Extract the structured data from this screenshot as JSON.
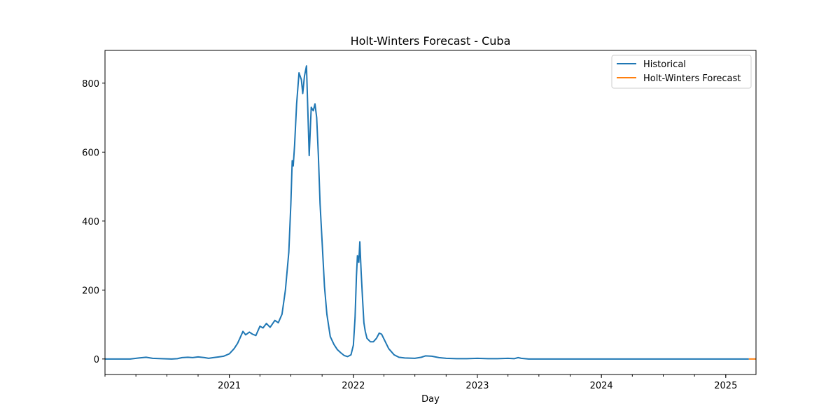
{
  "chart_data": {
    "type": "line",
    "title": "Holt-Winters Forecast - Cuba",
    "xlabel": "Day",
    "ylabel": "",
    "xlim": [
      "2020-01-01",
      "2025-03-31"
    ],
    "ylim": [
      -45,
      895
    ],
    "x_ticks": [
      "2021-01-01",
      "2022-01-01",
      "2023-01-01",
      "2024-01-01",
      "2025-01-01"
    ],
    "x_tick_labels": [
      "2021",
      "2022",
      "2023",
      "2024",
      "2025"
    ],
    "y_ticks": [
      0,
      200,
      400,
      600,
      800
    ],
    "y_tick_labels": [
      "0",
      "200",
      "400",
      "600",
      "800"
    ],
    "grid": false,
    "legend": "top-right",
    "series": [
      {
        "name": "Historical",
        "color": "#1f77b4",
        "points": [
          [
            "2020-01-01",
            0
          ],
          [
            "2020-03-15",
            0
          ],
          [
            "2020-04-10",
            3
          ],
          [
            "2020-05-01",
            5
          ],
          [
            "2020-05-20",
            2
          ],
          [
            "2020-06-15",
            1
          ],
          [
            "2020-07-15",
            0
          ],
          [
            "2020-08-01",
            1
          ],
          [
            "2020-08-15",
            4
          ],
          [
            "2020-09-01",
            5
          ],
          [
            "2020-09-15",
            4
          ],
          [
            "2020-10-01",
            6
          ],
          [
            "2020-10-20",
            4
          ],
          [
            "2020-11-01",
            2
          ],
          [
            "2020-11-15",
            4
          ],
          [
            "2020-12-01",
            6
          ],
          [
            "2020-12-15",
            8
          ],
          [
            "2021-01-01",
            15
          ],
          [
            "2021-01-15",
            30
          ],
          [
            "2021-01-25",
            45
          ],
          [
            "2021-02-01",
            60
          ],
          [
            "2021-02-10",
            80
          ],
          [
            "2021-02-18",
            70
          ],
          [
            "2021-03-01",
            78
          ],
          [
            "2021-03-10",
            72
          ],
          [
            "2021-03-20",
            68
          ],
          [
            "2021-04-01",
            95
          ],
          [
            "2021-04-10",
            90
          ],
          [
            "2021-04-20",
            103
          ],
          [
            "2021-05-01",
            92
          ],
          [
            "2021-05-15",
            112
          ],
          [
            "2021-05-25",
            105
          ],
          [
            "2021-06-05",
            130
          ],
          [
            "2021-06-15",
            200
          ],
          [
            "2021-06-25",
            310
          ],
          [
            "2021-07-01",
            450
          ],
          [
            "2021-07-05",
            575
          ],
          [
            "2021-07-08",
            560
          ],
          [
            "2021-07-12",
            620
          ],
          [
            "2021-07-18",
            740
          ],
          [
            "2021-07-25",
            830
          ],
          [
            "2021-08-01",
            810
          ],
          [
            "2021-08-05",
            770
          ],
          [
            "2021-08-10",
            820
          ],
          [
            "2021-08-16",
            850
          ],
          [
            "2021-08-20",
            720
          ],
          [
            "2021-08-24",
            590
          ],
          [
            "2021-08-30",
            730
          ],
          [
            "2021-09-05",
            720
          ],
          [
            "2021-09-10",
            740
          ],
          [
            "2021-09-15",
            700
          ],
          [
            "2021-09-20",
            590
          ],
          [
            "2021-09-25",
            450
          ],
          [
            "2021-10-01",
            340
          ],
          [
            "2021-10-08",
            210
          ],
          [
            "2021-10-15",
            130
          ],
          [
            "2021-10-25",
            65
          ],
          [
            "2021-11-05",
            42
          ],
          [
            "2021-11-15",
            27
          ],
          [
            "2021-11-25",
            18
          ],
          [
            "2021-12-05",
            10
          ],
          [
            "2021-12-15",
            7
          ],
          [
            "2021-12-25",
            12
          ],
          [
            "2022-01-01",
            40
          ],
          [
            "2022-01-06",
            120
          ],
          [
            "2022-01-10",
            240
          ],
          [
            "2022-01-13",
            300
          ],
          [
            "2022-01-17",
            280
          ],
          [
            "2022-01-20",
            340
          ],
          [
            "2022-01-24",
            250
          ],
          [
            "2022-01-28",
            175
          ],
          [
            "2022-02-01",
            105
          ],
          [
            "2022-02-05",
            80
          ],
          [
            "2022-02-10",
            60
          ],
          [
            "2022-02-20",
            50
          ],
          [
            "2022-03-01",
            50
          ],
          [
            "2022-03-10",
            60
          ],
          [
            "2022-03-18",
            75
          ],
          [
            "2022-03-25",
            72
          ],
          [
            "2022-04-05",
            50
          ],
          [
            "2022-04-15",
            30
          ],
          [
            "2022-05-01",
            12
          ],
          [
            "2022-05-15",
            5
          ],
          [
            "2022-06-01",
            3
          ],
          [
            "2022-07-01",
            2
          ],
          [
            "2022-07-20",
            5
          ],
          [
            "2022-08-01",
            9
          ],
          [
            "2022-08-20",
            8
          ],
          [
            "2022-09-10",
            4
          ],
          [
            "2022-10-01",
            2
          ],
          [
            "2022-11-01",
            1
          ],
          [
            "2022-12-01",
            1
          ],
          [
            "2023-01-01",
            2
          ],
          [
            "2023-02-01",
            1
          ],
          [
            "2023-03-01",
            1
          ],
          [
            "2023-04-01",
            2
          ],
          [
            "2023-04-20",
            1
          ],
          [
            "2023-05-01",
            4
          ],
          [
            "2023-05-10",
            2
          ],
          [
            "2023-06-01",
            0
          ],
          [
            "2024-01-01",
            0
          ],
          [
            "2025-01-01",
            0
          ],
          [
            "2025-03-10",
            0
          ]
        ]
      },
      {
        "name": "Holt-Winters Forecast",
        "color": "#ff7f0e",
        "points": [
          [
            "2025-03-10",
            0
          ],
          [
            "2025-03-31",
            0
          ]
        ]
      }
    ]
  }
}
